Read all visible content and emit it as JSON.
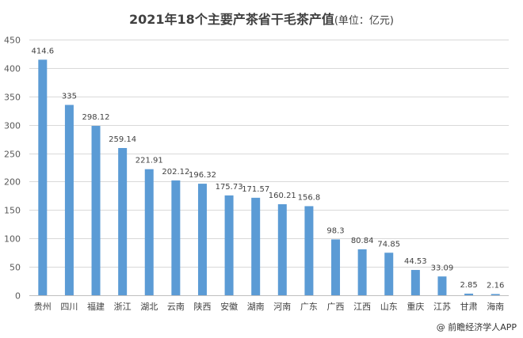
{
  "chart_data": {
    "type": "bar",
    "title": "2021年18个主要产茶省干毛茶产值",
    "title_unit": "(单位：亿元)",
    "categories": [
      "贵州",
      "四川",
      "福建",
      "浙江",
      "湖北",
      "云南",
      "陕西",
      "安徽",
      "湖南",
      "河南",
      "广东",
      "广西",
      "江西",
      "山东",
      "重庆",
      "江苏",
      "甘肃",
      "海南"
    ],
    "values": [
      414.6,
      335,
      298.12,
      259.14,
      221.91,
      202.12,
      196.32,
      175.73,
      171.57,
      160.21,
      156.8,
      98.3,
      80.84,
      74.85,
      44.53,
      33.09,
      2.85,
      2.16
    ],
    "data_labels": [
      "414.6",
      "335",
      "298.12",
      "259.14",
      "221.91",
      "202.12",
      "196.32",
      "175.73",
      "171.57",
      "160.21",
      "156.8",
      "98.3",
      "80.84",
      "74.85",
      "44.53",
      "33.09",
      "2.85",
      "2.16"
    ],
    "ylim": [
      0,
      450
    ],
    "yticks": [
      0,
      50,
      100,
      150,
      200,
      250,
      300,
      350,
      400,
      450
    ],
    "xlabel": "",
    "ylabel": "",
    "grid": true,
    "bar_color": "#5b9bd5"
  },
  "credit": "@ 前瞻经济学人APP"
}
